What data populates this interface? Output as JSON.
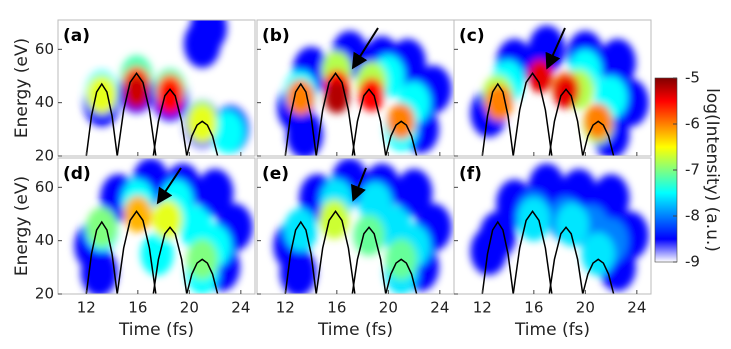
{
  "chart_data": {
    "type": "spectrogram",
    "xlabel": "Time (fs)",
    "ylabel": "Energy (eV)",
    "xlim": [
      9.8,
      25.1
    ],
    "xticks": [
      12,
      16,
      20,
      24
    ],
    "ylim": [
      20,
      71
    ],
    "yticks": [
      20,
      40,
      60
    ],
    "colorbar": {
      "label": "log(Intensity) (a.u.)",
      "lim": [
        -9,
        -5
      ],
      "ticks": [
        -5,
        -6,
        -7,
        -8,
        -9
      ],
      "colors": [
        "#ffffff",
        "#0000ff",
        "#0080ff",
        "#00ffff",
        "#80ff80",
        "#ffff00",
        "#ff8000",
        "#ff0000",
        "#800000"
      ]
    },
    "curve_color": "#000000",
    "curves": [
      {
        "x": [
          12.0,
          12.4,
          12.8,
          13.2,
          13.6,
          14.0,
          14.4
        ],
        "values": [
          20,
          35,
          44,
          47,
          44,
          35,
          20
        ]
      },
      {
        "x": [
          14.4,
          14.9,
          15.4,
          15.9,
          16.4,
          16.9,
          17.4
        ],
        "values": [
          20,
          37.2,
          47.6,
          51,
          47.6,
          37.2,
          20
        ]
      },
      {
        "x": [
          17.2,
          17.6,
          18.1,
          18.5,
          18.9,
          19.4,
          19.8
        ],
        "values": [
          20,
          33,
          42.6,
          45,
          42.6,
          33,
          20
        ]
      },
      {
        "x": [
          19.8,
          20.2,
          20.6,
          21.0,
          21.4,
          21.8,
          22.2
        ],
        "values": [
          20,
          27.5,
          31.6,
          33,
          31.6,
          27.5,
          20
        ]
      }
    ],
    "panels": [
      {
        "label": "(a)",
        "heat": {
          "x": [
            13.2,
            15.9,
            18.5,
            21.0,
            23.2,
            21.0,
            21.5,
            13.2,
            15.9,
            18.5,
            21.0,
            23.0,
            13.2,
            21.0,
            15.9,
            18.5,
            15.9,
            18.5
          ],
          "y": [
            40,
            45,
            42,
            32,
            30,
            62,
            68,
            44,
            50,
            45,
            33,
            29,
            43,
            32,
            47,
            44,
            44,
            42
          ],
          "values": [
            -8.5,
            -8.5,
            -8.5,
            -8.5,
            -8.5,
            -8.5,
            -8.5,
            -7.5,
            -7.2,
            -7.2,
            -7.0,
            -7.5,
            -6.6,
            -6.6,
            -5.8,
            -5.9,
            -5.3,
            -5.5
          ]
        }
      },
      {
        "label": "(b)",
        "heat": {
          "x": [
            12.8,
            14.0,
            17.0,
            19.5,
            21.5,
            23.5,
            22.5,
            13.5,
            13.2,
            20.0,
            22.0,
            21.0,
            16.0,
            18.7,
            13.2,
            21.0,
            16.0,
            18.7,
            16.0
          ],
          "y": [
            38,
            52,
            58,
            56,
            55,
            45,
            30,
            28,
            44,
            50,
            40,
            30,
            52,
            48,
            42,
            33,
            46,
            43,
            42
          ],
          "values": [
            -8.5,
            -8.5,
            -8.5,
            -8.5,
            -8.5,
            -8.5,
            -8.5,
            -8.5,
            -7.5,
            -7.5,
            -7.5,
            -7.5,
            -6.8,
            -6.8,
            -6.0,
            -6.0,
            -5.5,
            -5.5,
            -5.2
          ]
        }
      },
      {
        "label": "(c)",
        "heat": {
          "x": [
            12.5,
            14.5,
            17.0,
            20.0,
            22.5,
            23.5,
            22.0,
            14.0,
            20.0,
            22.0,
            13.2,
            21.0,
            19.5,
            13.3,
            18.5,
            21.0,
            16.5,
            18.5
          ],
          "y": [
            36,
            55,
            60,
            58,
            55,
            40,
            28,
            48,
            52,
            42,
            43,
            32,
            45,
            40,
            45,
            33,
            50,
            44
          ],
          "values": [
            -8.5,
            -8.5,
            -8.5,
            -8.5,
            -8.5,
            -8.5,
            -8.5,
            -7.5,
            -7.5,
            -7.5,
            -6.8,
            -6.8,
            -6.8,
            -6.0,
            -6.0,
            -6.0,
            -5.4,
            -5.4
          ]
        }
      },
      {
        "label": "(d)",
        "heat": {
          "x": [
            12.5,
            14.5,
            17.0,
            19.5,
            22.0,
            23.5,
            22.5,
            13.0,
            13.2,
            16.0,
            19.0,
            20.5,
            22.0,
            21.0,
            17.5,
            13.2,
            21.0,
            18.3,
            16.0
          ],
          "y": [
            38,
            56,
            62,
            60,
            58,
            45,
            30,
            28,
            44,
            55,
            55,
            45,
            38,
            28,
            35,
            45,
            33,
            48,
            50
          ],
          "values": [
            -8.5,
            -8.5,
            -8.5,
            -8.5,
            -8.5,
            -8.5,
            -8.5,
            -8.5,
            -7.5,
            -7.5,
            -7.5,
            -7.5,
            -7.5,
            -7.5,
            -7.5,
            -7.0,
            -7.0,
            -6.6,
            -6.2
          ]
        }
      },
      {
        "label": "(e)",
        "heat": {
          "x": [
            12.5,
            14.5,
            17.0,
            19.5,
            22.0,
            23.5,
            22.5,
            13.0,
            13.2,
            16.0,
            19.0,
            20.5,
            22.0,
            21.0,
            18.5,
            21.0,
            15.8
          ],
          "y": [
            38,
            56,
            62,
            60,
            58,
            45,
            30,
            28,
            44,
            55,
            54,
            45,
            38,
            28,
            42,
            33,
            48
          ],
          "values": [
            -8.5,
            -8.5,
            -8.5,
            -8.5,
            -8.5,
            -8.5,
            -8.5,
            -8.5,
            -7.6,
            -7.6,
            -7.6,
            -7.6,
            -7.6,
            -7.6,
            -7.1,
            -7.1,
            -6.7
          ]
        }
      },
      {
        "label": "(f)",
        "heat": {
          "x": [
            12.5,
            14.5,
            17.0,
            19.5,
            22.0,
            23.5,
            22.5,
            13.2,
            16.0,
            18.5,
            20.5,
            22.0,
            16.0,
            19.0,
            21.0
          ],
          "y": [
            36,
            54,
            60,
            58,
            56,
            42,
            30,
            42,
            50,
            48,
            45,
            40,
            48,
            46,
            35
          ],
          "values": [
            -8.5,
            -8.5,
            -8.5,
            -8.5,
            -8.5,
            -8.5,
            -8.5,
            -8.5,
            -8.0,
            -8.0,
            -8.0,
            -8.0,
            -7.6,
            -7.6,
            -7.6
          ]
        }
      }
    ]
  }
}
